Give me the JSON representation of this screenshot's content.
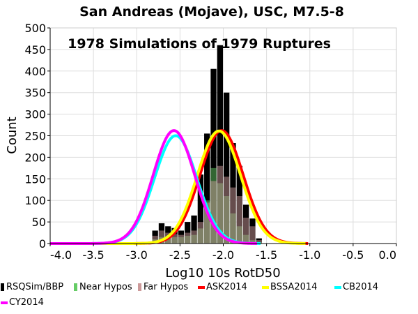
{
  "chart_data": {
    "type": "bar",
    "title": "San Andreas (Mojave), USC, M7.5-8",
    "annotation": "1978 Simulations of 1979 Ruptures",
    "xlabel": "Log10 10s RotD50",
    "ylabel": "Count",
    "xlim": [
      -4.0,
      0.0
    ],
    "ylim": [
      0,
      500
    ],
    "xticks": [
      "-4.0",
      "-3.5",
      "-3.0",
      "-2.5",
      "-2.0",
      "-1.5",
      "-1.0",
      "-0.5",
      "0.0"
    ],
    "yticks": [
      "0",
      "50",
      "100",
      "150",
      "200",
      "250",
      "300",
      "350",
      "400",
      "450",
      "500"
    ],
    "grid": true,
    "bin_width": 0.075,
    "bin_left_edges": [
      -2.825,
      -2.75,
      -2.675,
      -2.6,
      -2.525,
      -2.45,
      -2.375,
      -2.3,
      -2.225,
      -2.15,
      -2.075,
      -2.0,
      -1.925,
      -1.85,
      -1.775,
      -1.7,
      -1.625
    ],
    "series": [
      {
        "name": "RSQSim/BBP",
        "color": "#000000",
        "values": [
          30,
          47,
          40,
          36,
          30,
          50,
          65,
          160,
          255,
          405,
          460,
          350,
          233,
          180,
          90,
          58,
          12
        ]
      },
      {
        "name": "Near Hypos",
        "color": "#66cc66",
        "values": [
          10,
          15,
          15,
          15,
          15,
          18,
          20,
          35,
          100,
          175,
          140,
          110,
          70,
          40,
          20,
          8,
          3
        ]
      },
      {
        "name": "Far Hypos",
        "color": "#cc9999",
        "values": [
          18,
          30,
          25,
          22,
          20,
          25,
          30,
          50,
          95,
          145,
          180,
          155,
          130,
          110,
          60,
          40,
          8
        ]
      }
    ],
    "curves": [
      {
        "name": "ASK2014",
        "color": "#ff0000",
        "mean": -2.02,
        "sigma": 0.25,
        "peak": 262
      },
      {
        "name": "BSSA2014",
        "color": "#ffff00",
        "mean": -2.05,
        "sigma": 0.25,
        "peak": 261
      },
      {
        "name": "CB2014",
        "color": "#00ffff",
        "mean": -2.55,
        "sigma": 0.245,
        "peak": 250
      },
      {
        "name": "CY2014",
        "color": "#ff00ff",
        "mean": -2.57,
        "sigma": 0.24,
        "peak": 262
      }
    ],
    "legend": [
      "RSQSim/BBP",
      "Near Hypos",
      "Far Hypos",
      "ASK2014",
      "BSSA2014",
      "CB2014",
      "CY2014"
    ],
    "legend_placement": "bottom"
  }
}
